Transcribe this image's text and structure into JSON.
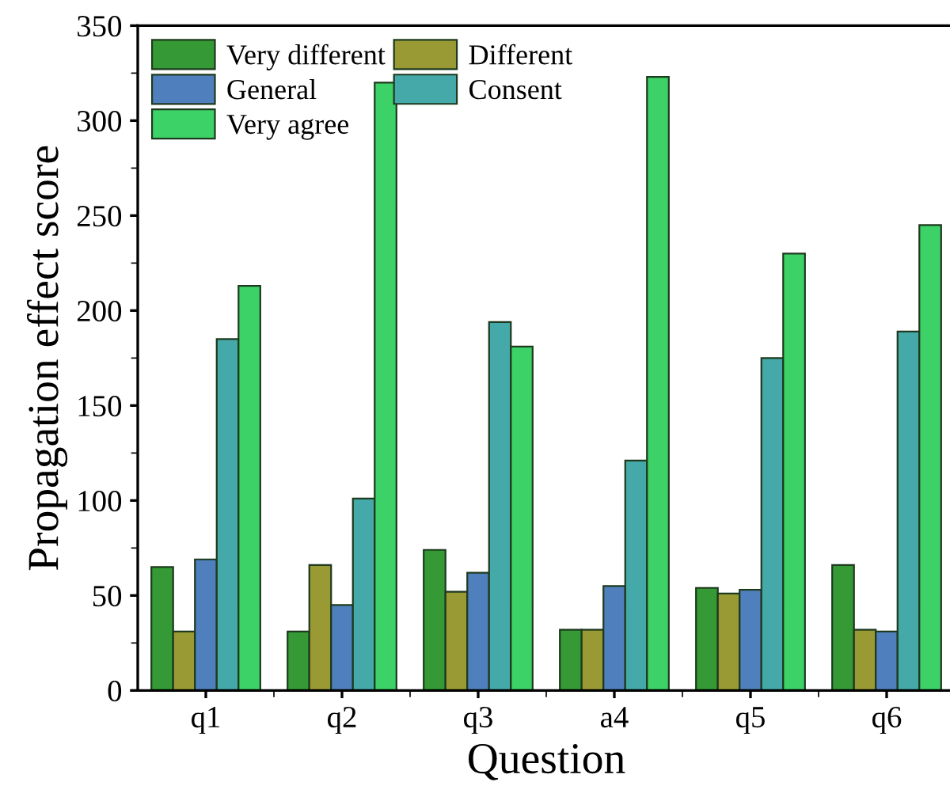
{
  "chart_data": {
    "type": "bar",
    "xlabel": "Question",
    "ylabel": "Propagation effect score",
    "categories": [
      "q1",
      "q2",
      "q3",
      "a4",
      "q5",
      "q6"
    ],
    "series": [
      {
        "name": "Very different",
        "color": "#359a35",
        "values": [
          65,
          31,
          74,
          32,
          54,
          66
        ]
      },
      {
        "name": "Different",
        "color": "#9a9a35",
        "values": [
          31,
          66,
          52,
          32,
          51,
          32
        ]
      },
      {
        "name": "General",
        "color": "#4f80bd",
        "values": [
          69,
          45,
          62,
          55,
          53,
          31
        ]
      },
      {
        "name": "Consent",
        "color": "#46a9a9",
        "values": [
          185,
          101,
          194,
          121,
          175,
          189
        ]
      },
      {
        "name": "Very agree",
        "color": "#3dd267",
        "values": [
          213,
          320,
          181,
          323,
          230,
          245
        ]
      }
    ],
    "ylim": [
      0,
      350
    ],
    "yticks": [
      0,
      50,
      100,
      150,
      200,
      250,
      300,
      350
    ],
    "grid": false,
    "legend": "top left"
  }
}
